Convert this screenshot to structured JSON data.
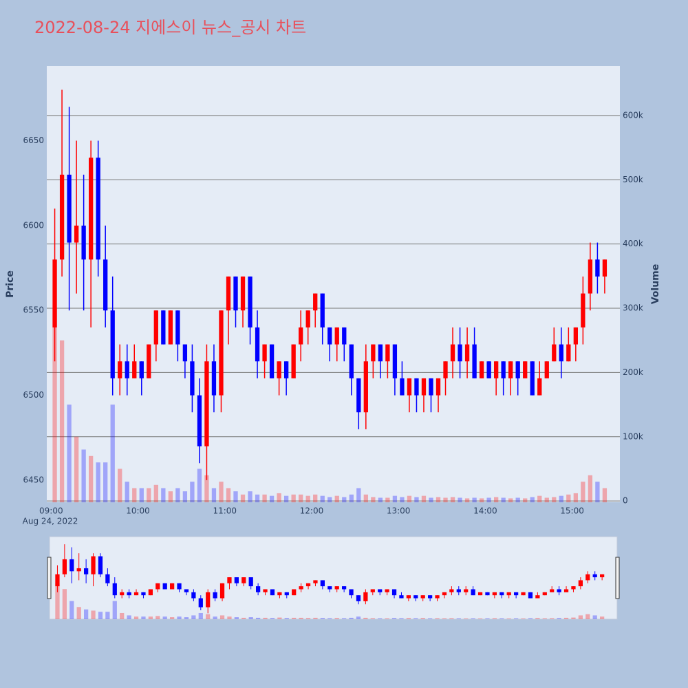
{
  "chart_data": {
    "type": "candlestick",
    "title": "2022-08-24 지에스이 뉴스_공시 차트",
    "y_label": "Price",
    "y2_label": "Volume",
    "x_date_label": "Aug 24, 2022",
    "increasing_color": "#ff0000",
    "decreasing_color": "#0000ff",
    "grid": true,
    "x": [
      "09:00",
      "09:05",
      "09:10",
      "09:15",
      "09:20",
      "09:25",
      "09:30",
      "09:35",
      "09:40",
      "09:45",
      "09:50",
      "09:55",
      "10:00",
      "10:05",
      "10:10",
      "10:15",
      "10:20",
      "10:25",
      "10:30",
      "10:35",
      "10:40",
      "10:45",
      "10:50",
      "10:55",
      "11:00",
      "11:05",
      "11:10",
      "11:15",
      "11:20",
      "11:25",
      "11:30",
      "11:35",
      "11:40",
      "11:45",
      "11:50",
      "11:55",
      "12:00",
      "12:05",
      "12:10",
      "12:15",
      "12:20",
      "12:25",
      "12:30",
      "12:35",
      "12:40",
      "12:45",
      "12:50",
      "12:55",
      "13:00",
      "13:05",
      "13:10",
      "13:15",
      "13:20",
      "13:25",
      "13:30",
      "13:35",
      "13:40",
      "13:45",
      "13:50",
      "13:55",
      "14:00",
      "14:05",
      "14:10",
      "14:15",
      "14:20",
      "14:25",
      "14:30",
      "14:35",
      "14:40",
      "14:45",
      "14:50",
      "14:55",
      "15:00",
      "15:05",
      "15:10",
      "15:15",
      "15:20"
    ],
    "open": [
      6540,
      6580,
      6630,
      6590,
      6600,
      6580,
      6640,
      6580,
      6550,
      6510,
      6520,
      6510,
      6520,
      6510,
      6530,
      6550,
      6530,
      6550,
      6530,
      6520,
      6500,
      6470,
      6520,
      6500,
      6550,
      6570,
      6550,
      6570,
      6540,
      6520,
      6530,
      6510,
      6520,
      6510,
      6530,
      6540,
      6550,
      6560,
      6540,
      6530,
      6540,
      6530,
      6510,
      6490,
      6520,
      6530,
      6520,
      6530,
      6510,
      6500,
      6510,
      6500,
      6510,
      6500,
      6510,
      6520,
      6530,
      6520,
      6530,
      6510,
      6520,
      6510,
      6520,
      6510,
      6520,
      6510,
      6520,
      6500,
      6510,
      6520,
      6530,
      6520,
      6530,
      6540,
      6560,
      6580,
      6570
    ],
    "high": [
      6610,
      6680,
      6670,
      6650,
      6630,
      6650,
      6650,
      6600,
      6570,
      6530,
      6530,
      6530,
      6520,
      6530,
      6550,
      6550,
      6550,
      6550,
      6530,
      6530,
      6510,
      6530,
      6530,
      6550,
      6570,
      6570,
      6570,
      6570,
      6550,
      6530,
      6530,
      6520,
      6520,
      6530,
      6550,
      6550,
      6560,
      6560,
      6540,
      6540,
      6540,
      6530,
      6510,
      6530,
      6530,
      6530,
      6530,
      6530,
      6520,
      6510,
      6510,
      6510,
      6510,
      6510,
      6520,
      6540,
      6540,
      6540,
      6540,
      6520,
      6520,
      6520,
      6520,
      6520,
      6520,
      6520,
      6520,
      6520,
      6520,
      6540,
      6540,
      6540,
      6540,
      6570,
      6590,
      6590,
      6580
    ],
    "low": [
      6520,
      6570,
      6550,
      6560,
      6550,
      6540,
      6570,
      6540,
      6500,
      6500,
      6500,
      6510,
      6500,
      6510,
      6520,
      6530,
      6530,
      6520,
      6510,
      6490,
      6460,
      6450,
      6490,
      6490,
      6530,
      6540,
      6540,
      6530,
      6510,
      6510,
      6510,
      6500,
      6500,
      6510,
      6520,
      6530,
      6540,
      6530,
      6520,
      6520,
      6520,
      6500,
      6480,
      6480,
      6510,
      6510,
      6510,
      6500,
      6500,
      6490,
      6490,
      6490,
      6490,
      6490,
      6500,
      6510,
      6510,
      6510,
      6510,
      6510,
      6510,
      6500,
      6500,
      6500,
      6500,
      6510,
      6500,
      6500,
      6510,
      6520,
      6510,
      6520,
      6520,
      6530,
      6550,
      6560,
      6560
    ],
    "close": [
      6580,
      6630,
      6590,
      6600,
      6580,
      6640,
      6580,
      6550,
      6510,
      6520,
      6510,
      6520,
      6510,
      6530,
      6550,
      6530,
      6550,
      6530,
      6520,
      6500,
      6470,
      6520,
      6500,
      6550,
      6570,
      6550,
      6570,
      6540,
      6520,
      6530,
      6510,
      6520,
      6510,
      6530,
      6540,
      6550,
      6560,
      6540,
      6530,
      6540,
      6530,
      6510,
      6490,
      6520,
      6530,
      6520,
      6530,
      6510,
      6500,
      6510,
      6500,
      6510,
      6500,
      6510,
      6520,
      6530,
      6520,
      6530,
      6510,
      6520,
      6510,
      6520,
      6510,
      6520,
      6510,
      6520,
      6500,
      6510,
      6520,
      6530,
      6520,
      6530,
      6540,
      6560,
      6580,
      6570,
      6580
    ],
    "volume": [
      300000,
      250000,
      150000,
      100000,
      80000,
      70000,
      60000,
      60000,
      150000,
      50000,
      30000,
      20000,
      20000,
      20000,
      25000,
      20000,
      15000,
      20000,
      15000,
      30000,
      50000,
      40000,
      20000,
      30000,
      20000,
      15000,
      10000,
      15000,
      10000,
      10000,
      8000,
      12000,
      8000,
      10000,
      10000,
      8000,
      10000,
      8000,
      6000,
      8000,
      6000,
      10000,
      20000,
      10000,
      6000,
      5000,
      5000,
      8000,
      6000,
      8000,
      6000,
      8000,
      5000,
      6000,
      5000,
      6000,
      5000,
      4000,
      5000,
      4000,
      5000,
      6000,
      5000,
      4000,
      5000,
      4000,
      6000,
      8000,
      5000,
      6000,
      8000,
      10000,
      12000,
      30000,
      40000,
      30000,
      20000
    ],
    "xlim": [
      "08:57",
      "15:33"
    ],
    "xticks": [
      "09:00",
      "10:00",
      "11:00",
      "12:00",
      "13:00",
      "14:00",
      "15:00"
    ],
    "ylim": [
      6437,
      6694
    ],
    "yticks": [
      6450,
      6500,
      6550,
      6600,
      6650
    ],
    "y2lim": [
      -2000,
      677000
    ],
    "y2ticks": [
      0,
      {
        "value": 100000,
        "label": "100k"
      },
      {
        "value": 200000,
        "label": "200k"
      },
      {
        "value": 300000,
        "label": "300k"
      },
      {
        "value": 400000,
        "label": "400k"
      },
      {
        "value": 500000,
        "label": "500k"
      },
      {
        "value": 600000,
        "label": "600k"
      }
    ]
  }
}
